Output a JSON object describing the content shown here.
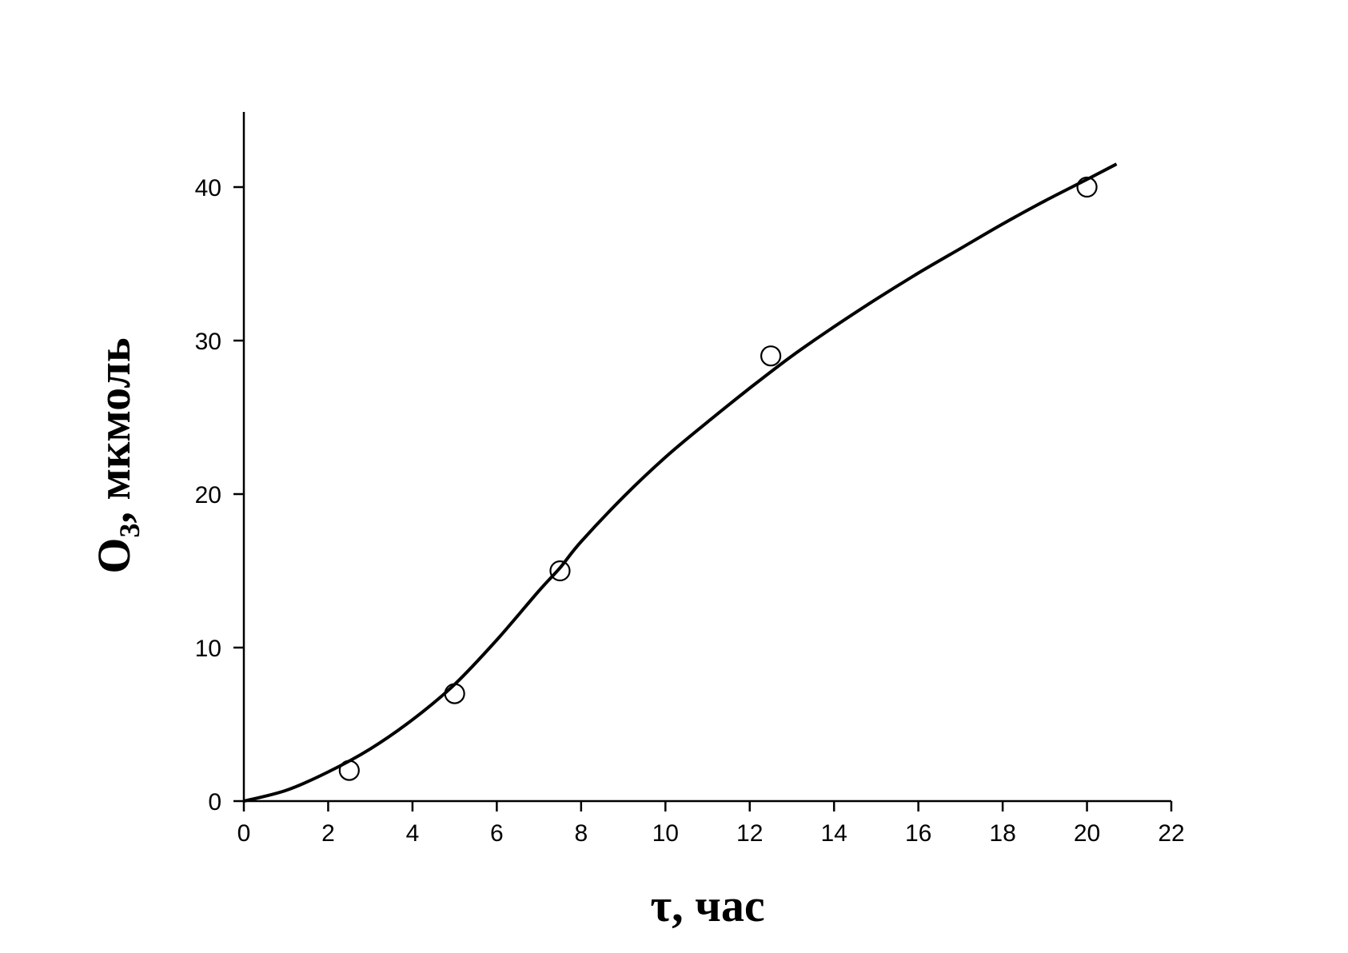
{
  "chart_data": {
    "type": "scatter",
    "xlabel": "τ, час",
    "ylabel": {
      "main": "O",
      "subscript": "3",
      "rest": ", мкмоль"
    },
    "xlim": [
      0,
      22
    ],
    "ylim": [
      0,
      45
    ],
    "x_ticks": [
      0,
      2,
      4,
      6,
      8,
      10,
      12,
      14,
      16,
      18,
      20,
      22
    ],
    "y_ticks": [
      0,
      10,
      20,
      30,
      40
    ],
    "grid": false,
    "legend": "none",
    "series": [
      {
        "kind": "markers",
        "marker": "open-circle",
        "x": [
          2.5,
          5,
          7.5,
          12.5,
          20
        ],
        "y": [
          2,
          7,
          15,
          29,
          40
        ]
      },
      {
        "kind": "line",
        "x": [
          0,
          1,
          2,
          3,
          4,
          5,
          6,
          7,
          7.5,
          8,
          9,
          10,
          11,
          12,
          13,
          14,
          15,
          16,
          17,
          18,
          19,
          20,
          20.7
        ],
        "y": [
          0,
          0.7,
          1.9,
          3.4,
          5.3,
          7.6,
          10.5,
          13.7,
          15.2,
          16.9,
          19.8,
          22.4,
          24.7,
          26.9,
          29.0,
          30.9,
          32.7,
          34.4,
          36.0,
          37.6,
          39.1,
          40.5,
          41.5
        ]
      }
    ],
    "colors": {
      "line": "#000000",
      "marker": "#000000",
      "background": "#ffffff"
    }
  }
}
